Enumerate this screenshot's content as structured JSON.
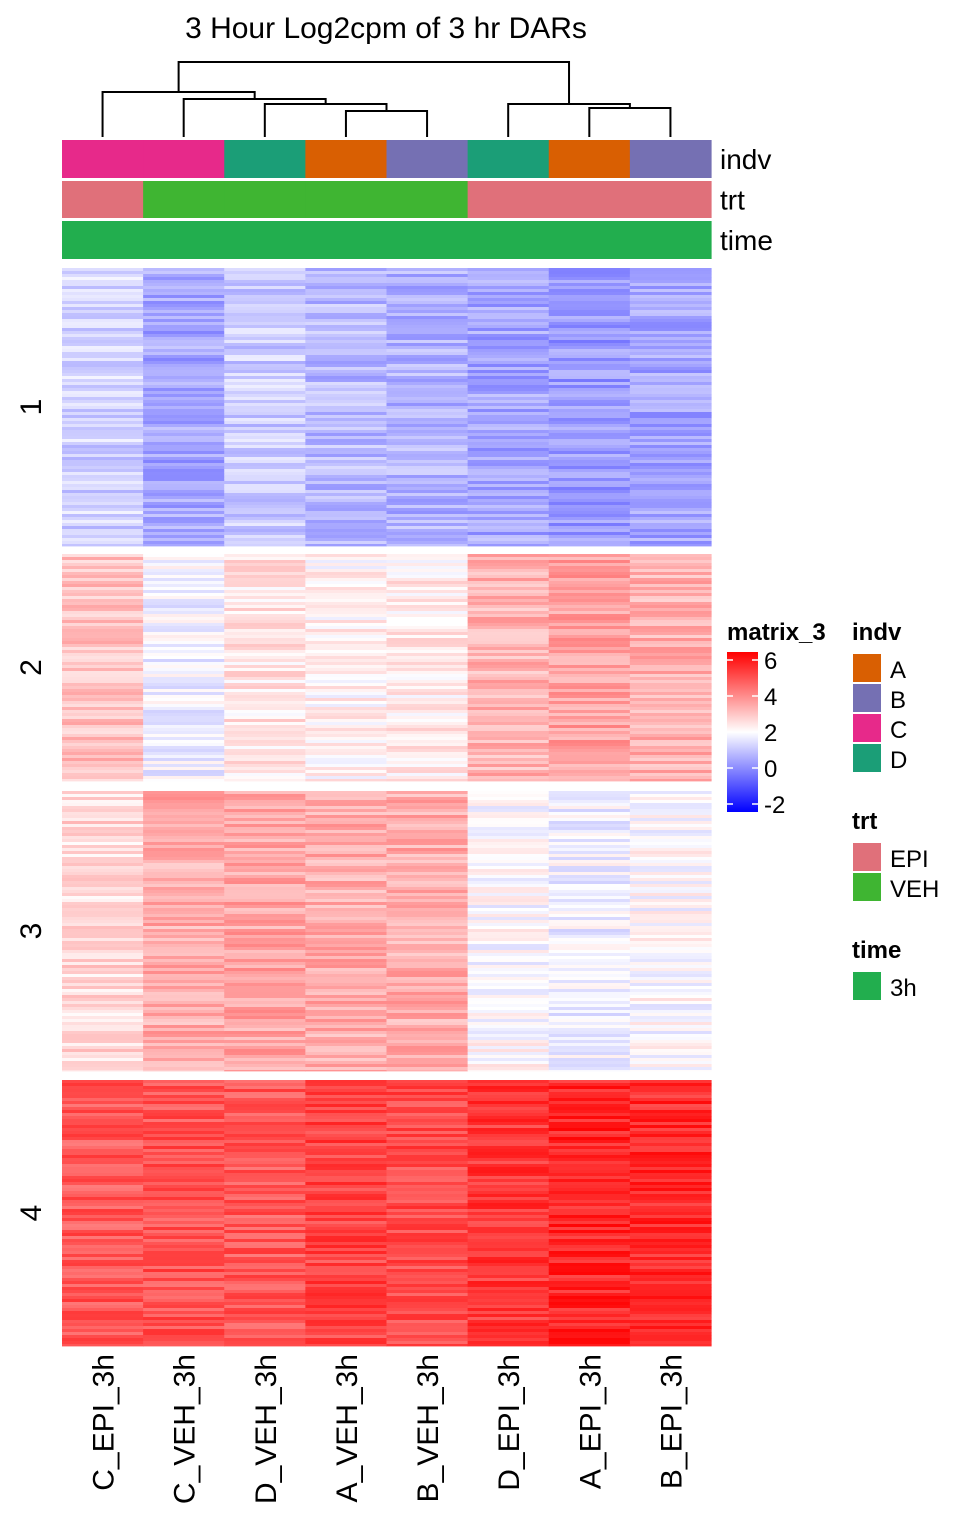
{
  "chart_data": {
    "type": "heatmap",
    "title": "3 Hour Log2cpm of 3 hr DARs",
    "columns": [
      "C_EPI_3h",
      "C_VEH_3h",
      "D_VEH_3h",
      "A_VEH_3h",
      "B_VEH_3h",
      "D_EPI_3h",
      "A_EPI_3h",
      "B_EPI_3h"
    ],
    "row_clusters": [
      "1",
      "2",
      "3",
      "4"
    ],
    "cluster_mean_values": [
      [
        1.3,
        0.6,
        1.2,
        0.9,
        0.8,
        0.6,
        0.4,
        0.6
      ],
      [
        3.0,
        1.8,
        2.4,
        2.2,
        2.3,
        3.2,
        3.5,
        3.2
      ],
      [
        2.6,
        3.3,
        3.4,
        3.3,
        3.3,
        2.0,
        1.8,
        2.0
      ],
      [
        4.6,
        4.7,
        4.6,
        4.9,
        4.8,
        5.1,
        5.4,
        5.3
      ]
    ],
    "annotations": [
      {
        "name": "indv",
        "values": [
          "C",
          "C",
          "D",
          "A",
          "B",
          "D",
          "A",
          "B"
        ]
      },
      {
        "name": "trt",
        "values": [
          "EPI",
          "VEH",
          "VEH",
          "VEH",
          "VEH",
          "EPI",
          "EPI",
          "EPI"
        ]
      },
      {
        "name": "time",
        "values": [
          "3h",
          "3h",
          "3h",
          "3h",
          "3h",
          "3h",
          "3h",
          "3h"
        ]
      }
    ],
    "colorbar": {
      "title": "matrix_3",
      "ticks": [
        "6",
        "4",
        "2",
        "0",
        "-2"
      ],
      "low_color": "#0000FF",
      "mid_color": "#FFFFFF",
      "high_color": "#FF0000"
    },
    "legends": [
      {
        "title": "indv",
        "items": [
          {
            "label": "A",
            "color": "#D95F02"
          },
          {
            "label": "B",
            "color": "#7570B3"
          },
          {
            "label": "C",
            "color": "#E7298A"
          },
          {
            "label": "D",
            "color": "#1B9E77"
          }
        ]
      },
      {
        "title": "trt",
        "items": [
          {
            "label": "EPI",
            "color": "#E0707A"
          },
          {
            "label": "VEH",
            "color": "#3FB532"
          }
        ]
      },
      {
        "title": "time",
        "items": [
          {
            "label": "3h",
            "color": "#22AE4E"
          }
        ]
      }
    ]
  }
}
